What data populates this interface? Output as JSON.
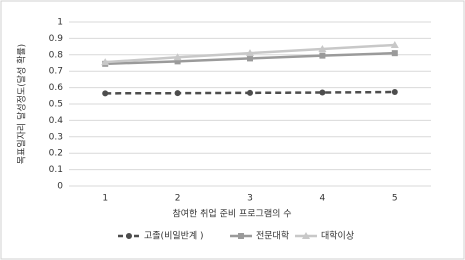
{
  "chart_data": {
    "type": "line",
    "x_label": "참여한 취업 준비 프로그램의 수",
    "y_label": "목표일자리 달성정도(달성 확률)",
    "categories": [
      "1",
      "2",
      "3",
      "4",
      "5"
    ],
    "series": [
      {
        "name": "고졸(비일반계 )",
        "color": "#4d4d4d",
        "marker": "circle",
        "dash": true,
        "values": [
          0.565,
          0.566,
          0.568,
          0.57,
          0.573
        ]
      },
      {
        "name": "전문대학",
        "color": "#9a9a9a",
        "marker": "square",
        "dash": false,
        "values": [
          0.745,
          0.76,
          0.778,
          0.795,
          0.81
        ]
      },
      {
        "name": "대학이상",
        "color": "#c8c8c8",
        "marker": "triangle",
        "dash": false,
        "values": [
          0.755,
          0.785,
          0.81,
          0.835,
          0.86
        ]
      }
    ],
    "ylim": [
      0,
      1
    ],
    "yticks": [
      0,
      0.1,
      0.2,
      0.3,
      0.4,
      0.5,
      0.6,
      0.7,
      0.8,
      0.9,
      1
    ],
    "grid": true
  }
}
